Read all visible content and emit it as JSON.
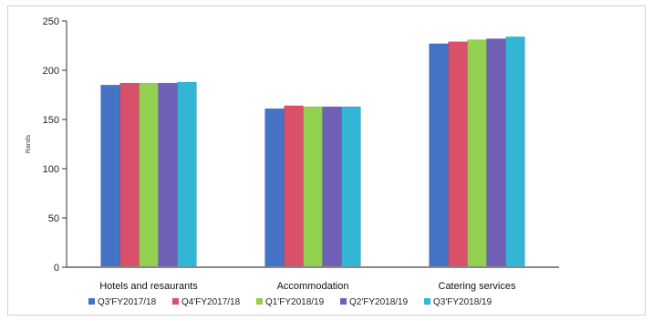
{
  "chart_data": {
    "type": "bar",
    "categories": [
      "Hotels and resaurants",
      "Accommodation",
      "Catering services"
    ],
    "series": [
      {
        "name": "Q3'FY2017/18",
        "color": "#4472c4",
        "values": [
          185,
          161,
          227
        ]
      },
      {
        "name": "Q4'FY2017/18",
        "color": "#d9506a",
        "values": [
          187,
          164,
          229
        ]
      },
      {
        "name": "Q1'FY2018/19",
        "color": "#92d050",
        "values": [
          187,
          163,
          231
        ]
      },
      {
        "name": "Q2'FY2018/19",
        "color": "#7060b8",
        "values": [
          187,
          163,
          232
        ]
      },
      {
        "name": "Q3'FY2018/19",
        "color": "#33b5d6",
        "values": [
          188,
          163,
          234
        ]
      }
    ],
    "ylabel": "Rands",
    "ylim": [
      0,
      250
    ],
    "yticks": [
      0,
      50,
      100,
      150,
      200,
      250
    ],
    "grid": false,
    "legend_position": "bottom"
  }
}
